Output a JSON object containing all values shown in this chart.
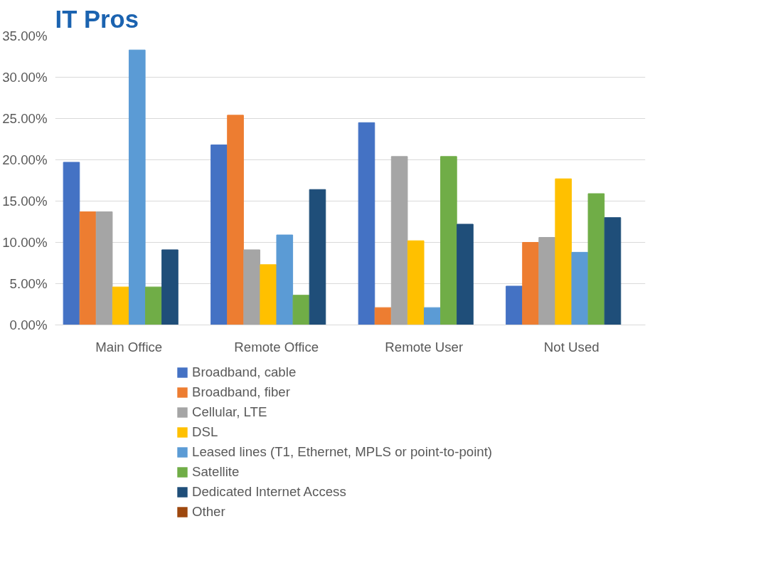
{
  "chart_data": {
    "type": "bar",
    "title": "IT Pros",
    "categories": [
      "Main Office",
      "Remote Office",
      "Remote User",
      "Not Used"
    ],
    "series": [
      {
        "name": "Broadband, cable",
        "color": "#4472c4",
        "values": [
          19.7,
          21.8,
          24.5,
          4.7
        ]
      },
      {
        "name": "Broadband, fiber",
        "color": "#ed7d31",
        "values": [
          13.7,
          25.4,
          2.1,
          10.0
        ]
      },
      {
        "name": "Cellular, LTE",
        "color": "#a5a5a5",
        "values": [
          13.7,
          9.1,
          20.4,
          10.6
        ]
      },
      {
        "name": "DSL",
        "color": "#ffc000",
        "values": [
          4.6,
          7.3,
          10.2,
          17.7
        ]
      },
      {
        "name": "Leased lines (T1, Ethernet, MPLS or point-to-point)",
        "color": "#5b9bd5",
        "values": [
          33.3,
          10.9,
          2.1,
          8.8
        ]
      },
      {
        "name": "Satellite",
        "color": "#70ad47",
        "values": [
          4.6,
          3.6,
          20.4,
          15.9
        ]
      },
      {
        "name": "Dedicated Internet Access",
        "color": "#1f4e79",
        "values": [
          9.1,
          16.4,
          12.2,
          13.0
        ]
      },
      {
        "name": "Other",
        "color": "#9e480e",
        "values": [
          0,
          0,
          0,
          0
        ]
      }
    ],
    "ylim": [
      0,
      35
    ],
    "yticks": [
      {
        "value": 0,
        "label": "0.00%"
      },
      {
        "value": 5,
        "label": "5.00%"
      },
      {
        "value": 10,
        "label": "10.00%"
      },
      {
        "value": 15,
        "label": "15.00%"
      },
      {
        "value": 20,
        "label": "20.00%"
      },
      {
        "value": 25,
        "label": "25.00%"
      },
      {
        "value": 30,
        "label": "30.00%"
      },
      {
        "value": 35,
        "label": "35.00%"
      }
    ],
    "grid": "y",
    "legend": "bottom"
  }
}
